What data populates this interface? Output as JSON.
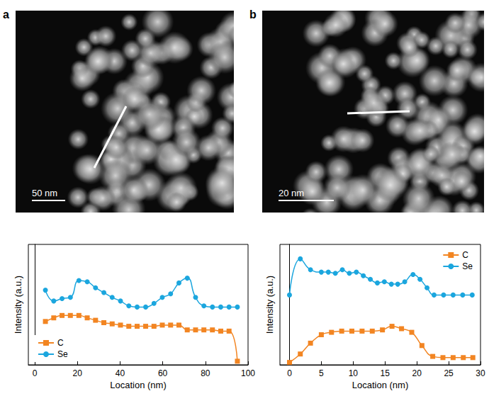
{
  "chart_data": [
    {
      "panel": "a",
      "type": "line",
      "annotations": [
        "50 nm"
      ],
      "x_label": "Location (nm)",
      "y_label": "Intensity (a.u.)",
      "xlim": [
        -3,
        100
      ],
      "xticks": [
        0,
        20,
        40,
        60,
        80,
        100
      ],
      "ylim": [
        0,
        100
      ],
      "tick_labels": "x",
      "legend": "lower left",
      "series": [
        {
          "name": "C",
          "color": "#f28522",
          "marker": "square",
          "x": [
            5,
            8.9,
            12.8,
            16.7,
            20.7,
            24.6,
            28.5,
            32.4,
            36.3,
            40.2,
            44.1,
            48,
            52,
            55.9,
            59.8,
            63.7,
            67.6,
            71.5,
            75.4,
            79.3,
            83.3,
            87.2,
            91.1,
            95
          ],
          "values": [
            36,
            39,
            41,
            41,
            41,
            39,
            37,
            35,
            34,
            33,
            32,
            32,
            32,
            32,
            33,
            33,
            33,
            29,
            29,
            29,
            29,
            28,
            28,
            3
          ]
        },
        {
          "name": "Se",
          "color": "#1ba6de",
          "marker": "circle",
          "x": [
            5,
            8.9,
            12.8,
            16.7,
            20.7,
            24.6,
            28.5,
            32.4,
            36.3,
            40.2,
            44.1,
            48,
            52,
            55.9,
            59.8,
            63.7,
            67.6,
            71.5,
            75.4,
            79.3,
            83.3,
            87.2,
            91.1,
            95
          ],
          "values": [
            62,
            53,
            55,
            56,
            70,
            69,
            64,
            60,
            56,
            53,
            49,
            48,
            48,
            51,
            56,
            59,
            68,
            72,
            56,
            49,
            48,
            48,
            48,
            48
          ]
        }
      ]
    },
    {
      "panel": "b",
      "type": "line",
      "annotations": [
        "20 nm"
      ],
      "x_label": "Location (nm)",
      "y_label": "Intensity (a.u.)",
      "xlim": [
        -1.5,
        30
      ],
      "xticks": [
        0,
        5,
        10,
        15,
        20,
        25,
        30
      ],
      "ylim": [
        0,
        100
      ],
      "tick_labels": "x",
      "legend": "upper right",
      "series": [
        {
          "name": "C",
          "color": "#f28522",
          "marker": "square",
          "x": [
            0,
            1.7,
            3.3,
            5,
            6.6,
            8.2,
            9.8,
            11.4,
            13,
            14.6,
            16.1,
            17.6,
            19.2,
            20.8,
            22.5,
            24.1,
            25.7,
            27.3,
            28.8
          ],
          "values": [
            2,
            9,
            18,
            25,
            27,
            28,
            28,
            28,
            28,
            29,
            32,
            30,
            27,
            16,
            7,
            6,
            6,
            6,
            6
          ]
        },
        {
          "name": "Se",
          "color": "#1ba6de",
          "marker": "circle",
          "x": [
            0,
            1.7,
            3.3,
            5,
            6.1,
            7.2,
            8.3,
            9.4,
            10.5,
            11.6,
            12.7,
            13.8,
            14.9,
            16,
            17,
            18.1,
            19.4,
            20.5,
            21.6,
            22.7,
            24.2,
            25.7,
            27.2,
            28.7
          ],
          "values": [
            58,
            88,
            79,
            77,
            77,
            76,
            79,
            76,
            77,
            74,
            71,
            68,
            69,
            67,
            67,
            69,
            75,
            71,
            64,
            58,
            58,
            58,
            58,
            58
          ]
        }
      ]
    }
  ]
}
